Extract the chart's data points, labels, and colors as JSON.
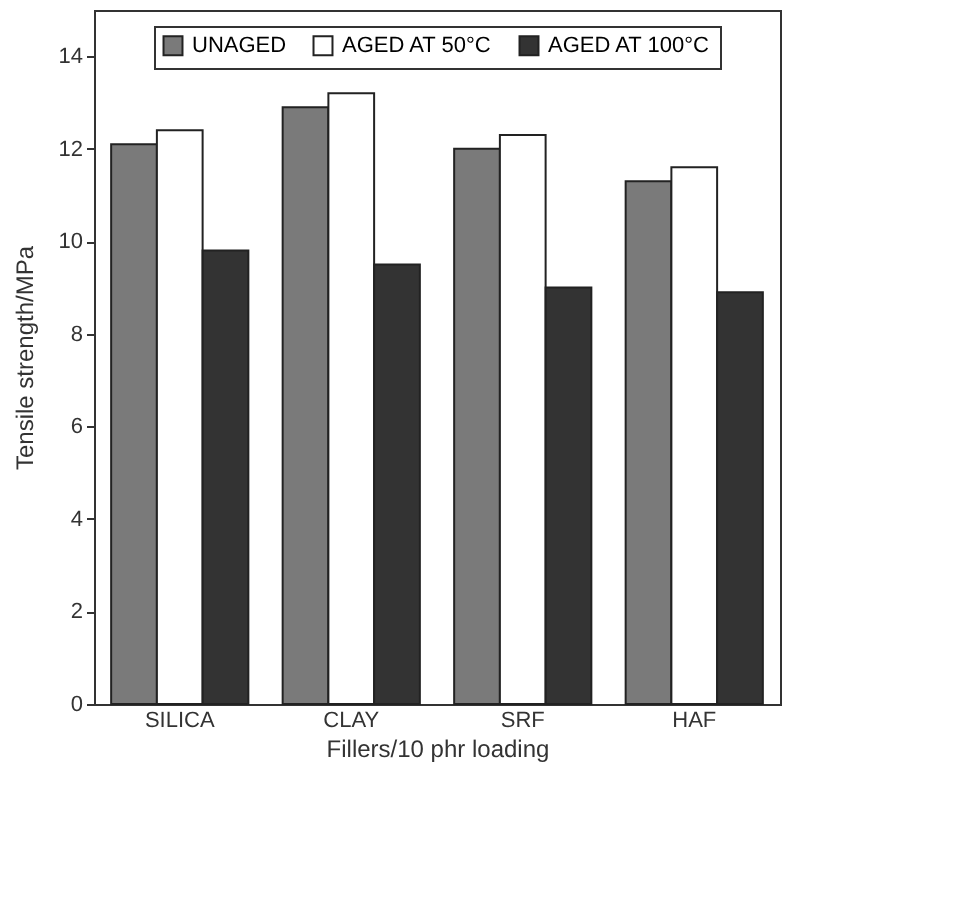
{
  "chart_data": {
    "type": "bar",
    "xlabel": "Fillers/10 phr loading",
    "ylabel": "Tensile strength/MPa",
    "categories": [
      "SILICA",
      "CLAY",
      "SRF",
      "HAF"
    ],
    "series": [
      {
        "name": "UNAGED",
        "color": "#7a7a7a",
        "values": [
          12.1,
          12.9,
          12.0,
          11.3
        ]
      },
      {
        "name": "AGED AT 50°C",
        "color": "#ffffff",
        "values": [
          12.4,
          13.2,
          12.3,
          11.6
        ]
      },
      {
        "name": "AGED AT 100°C",
        "color": "#333333",
        "values": [
          9.8,
          9.5,
          9.0,
          8.9
        ]
      }
    ],
    "ylim": [
      0,
      15
    ],
    "yticks": [
      0,
      2,
      4,
      6,
      8,
      10,
      12,
      14
    ],
    "grid": false,
    "legend": "top"
  }
}
